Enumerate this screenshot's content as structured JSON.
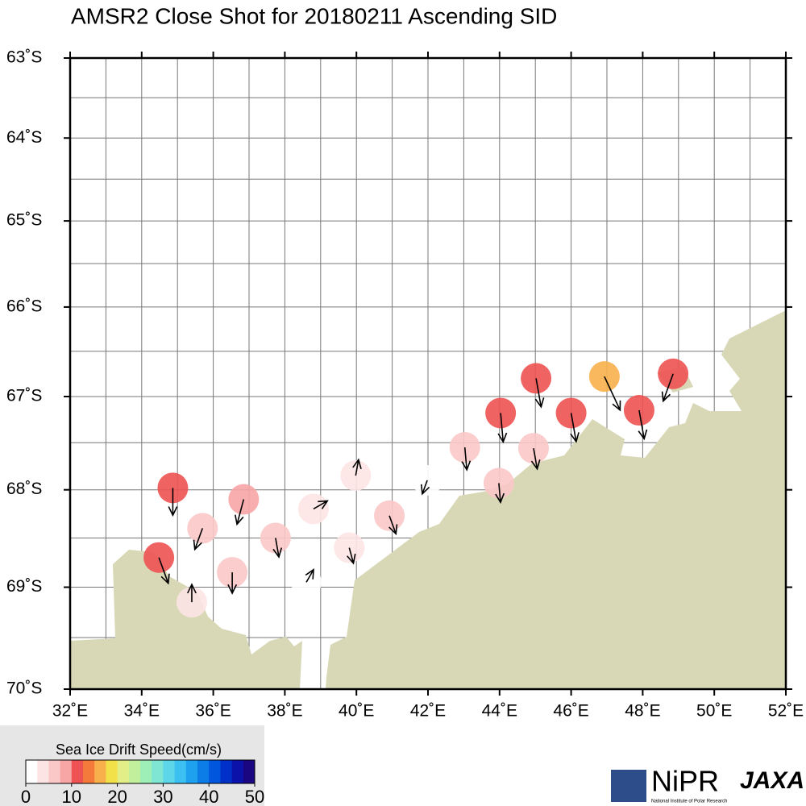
{
  "chart_data": {
    "type": "drift-map",
    "title": "AMSR2 Close Shot for 20180211 Ascending SID",
    "xlim": [
      32,
      52
    ],
    "ylim": [
      -63,
      -70
    ],
    "xticks": [
      {
        "value": 32,
        "label": "32˚E"
      },
      {
        "value": 34,
        "label": "34˚E"
      },
      {
        "value": 36,
        "label": "36˚E"
      },
      {
        "value": 38,
        "label": "38˚E"
      },
      {
        "value": 40,
        "label": "40˚E"
      },
      {
        "value": 42,
        "label": "42˚E"
      },
      {
        "value": 44,
        "label": "44˚E"
      },
      {
        "value": 46,
        "label": "46˚E"
      },
      {
        "value": 48,
        "label": "48˚E"
      },
      {
        "value": 50,
        "label": "50˚E"
      },
      {
        "value": 52,
        "label": "52˚E"
      }
    ],
    "yticks": [
      {
        "value": -63,
        "label": "63˚S"
      },
      {
        "value": -64,
        "label": "64˚S"
      },
      {
        "value": -65,
        "label": "65˚S"
      },
      {
        "value": -66,
        "label": "66˚S"
      },
      {
        "value": -67,
        "label": "67˚S"
      },
      {
        "value": -68,
        "label": "68˚S"
      },
      {
        "value": -69,
        "label": "69˚S"
      },
      {
        "value": -70,
        "label": "70˚S"
      }
    ],
    "grid": true,
    "points": {
      "lon": [
        48.85,
        46.93,
        45.02,
        46.0,
        47.9,
        44.03,
        43.03,
        44.95,
        43.98,
        41.98,
        39.98,
        34.87,
        36.85,
        38.8,
        40.92,
        35.7,
        37.74,
        39.8,
        34.48,
        36.53,
        38.6,
        35.4
      ],
      "lat": [
        -66.75,
        -66.78,
        -66.8,
        -67.18,
        -67.15,
        -67.18,
        -67.55,
        -67.56,
        -67.93,
        -67.9,
        -67.85,
        -67.98,
        -68.1,
        -68.2,
        -68.27,
        -68.4,
        -68.5,
        -68.6,
        -68.7,
        -68.85,
        -68.95,
        -69.15
      ],
      "speed": [
        11,
        16,
        11,
        11,
        11,
        11,
        7,
        6,
        5,
        2,
        3,
        10,
        9,
        3,
        5,
        7,
        5,
        3,
        10,
        6,
        2,
        4
      ],
      "direction": [
        200,
        155,
        170,
        170,
        170,
        175,
        175,
        170,
        175,
        200,
        10,
        180,
        195,
        60,
        160,
        200,
        170,
        165,
        160,
        180,
        30,
        0
      ]
    },
    "colorbar": {
      "title": "Sea Ice Drift Speed(cm/s)",
      "lim": [
        0,
        50
      ],
      "ticks": [
        0,
        10,
        20,
        30,
        40,
        50
      ],
      "colors": [
        "#ffffff",
        "#fde4e4",
        "#fbc8c8",
        "#f7a5a5",
        "#ee5252",
        "#f47a3c",
        "#f8b04c",
        "#f3e14a",
        "#e2ef88",
        "#c2ef9c",
        "#9eeeb8",
        "#7ee6d2",
        "#5ed6ea",
        "#3cc0f2",
        "#1ea2f0",
        "#0c7ce6",
        "#0056dc",
        "#0030c8",
        "#0a12aa",
        "#1a0680"
      ]
    },
    "logos": {
      "nipr": "NiPR",
      "nipr_caption": "National Institute of Polar Research",
      "jaxa": "JAXA"
    }
  }
}
